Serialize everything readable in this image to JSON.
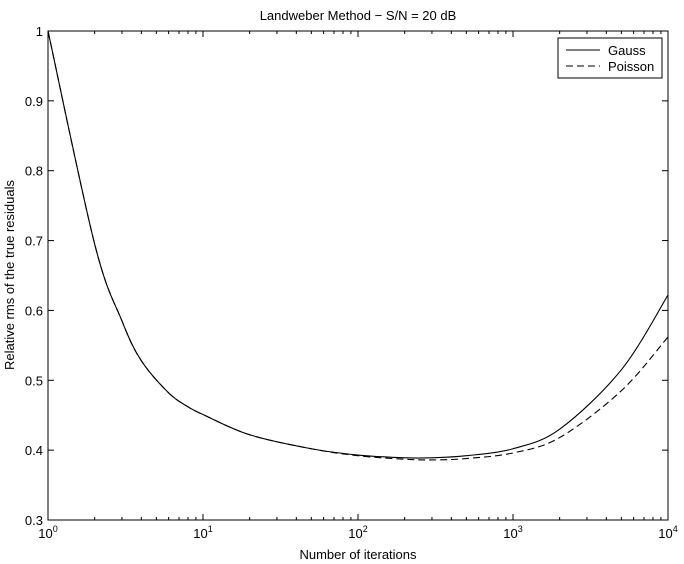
{
  "chart_data": {
    "type": "line",
    "title": "Landweber Method − S/N = 20 dB",
    "xlabel": "Number of iterations",
    "ylabel": "Relative rms of the true residuals",
    "xscale": "log",
    "xlim": [
      1,
      10000
    ],
    "ylim": [
      0.3,
      1.0
    ],
    "grid": false,
    "legend_position": "top-right",
    "x_ticks": [
      {
        "base": "10",
        "exp": "0",
        "value": 1
      },
      {
        "base": "10",
        "exp": "1",
        "value": 10
      },
      {
        "base": "10",
        "exp": "2",
        "value": 100
      },
      {
        "base": "10",
        "exp": "3",
        "value": 1000
      },
      {
        "base": "10",
        "exp": "4",
        "value": 10000
      }
    ],
    "y_ticks": [
      "0.3",
      "0.4",
      "0.5",
      "0.6",
      "0.7",
      "0.8",
      "0.9",
      "1"
    ],
    "series": [
      {
        "name": "Gauss",
        "style": "solid",
        "color": "#000000",
        "x": [
          1,
          2,
          3,
          4,
          6,
          8,
          10,
          20,
          50,
          100,
          200,
          300,
          500,
          1000,
          2000,
          5000,
          10000
        ],
        "y": [
          1.0,
          0.695,
          0.585,
          0.528,
          0.482,
          0.462,
          0.451,
          0.422,
          0.402,
          0.393,
          0.389,
          0.389,
          0.392,
          0.402,
          0.43,
          0.515,
          0.622
        ]
      },
      {
        "name": "Poisson",
        "style": "dashed",
        "color": "#000000",
        "x": [
          1,
          2,
          3,
          4,
          6,
          8,
          10,
          20,
          50,
          100,
          200,
          300,
          500,
          1000,
          2000,
          5000,
          10000
        ],
        "y": [
          1.0,
          0.695,
          0.585,
          0.528,
          0.482,
          0.462,
          0.451,
          0.422,
          0.402,
          0.392,
          0.387,
          0.386,
          0.388,
          0.396,
          0.418,
          0.485,
          0.562
        ]
      }
    ]
  }
}
